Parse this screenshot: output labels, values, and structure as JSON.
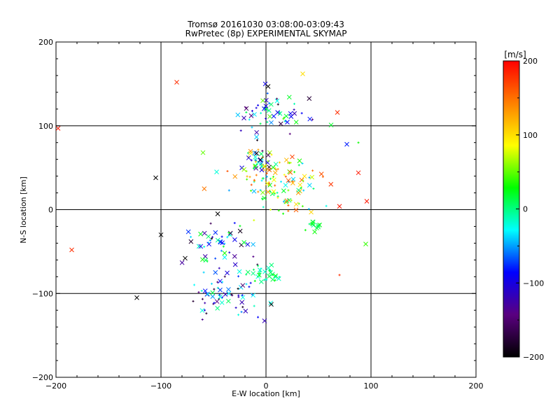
{
  "chart_data": {
    "type": "scatter",
    "title": "Tromsø 20161030 03:08:00-03:09:43",
    "subtitle": "RwPretec (8p) EXPERIMENTAL SKYMAP",
    "xlabel": "E-W location [km]",
    "ylabel": "N-S location [km]",
    "xlim": [
      -200,
      200
    ],
    "ylim": [
      -200,
      200
    ],
    "xticks": [
      "-200",
      "-100",
      "0",
      "100",
      "200"
    ],
    "yticks": [
      "-200",
      "-100",
      "0",
      "100",
      "200"
    ],
    "grid": true,
    "colorbar": {
      "label": "[m/s]",
      "range": [
        -200,
        200
      ],
      "ticks": [
        "200",
        "100",
        "0",
        "-100",
        "-200"
      ],
      "colors": [
        "#000000",
        "#5a0080",
        "#0000ff",
        "#00ffff",
        "#00ff00",
        "#ffff00",
        "#ff8000",
        "#ff0000"
      ]
    },
    "points": [
      {
        "x": -85,
        "y": 152,
        "v": 180,
        "m": "x"
      },
      {
        "x": 35,
        "y": 162,
        "v": 100,
        "m": "x"
      },
      {
        "x": 2,
        "y": 147,
        "v": -200,
        "m": "x"
      },
      {
        "x": 68,
        "y": 116,
        "v": 180,
        "m": "x"
      },
      {
        "x": -198,
        "y": 97,
        "v": 190,
        "m": "x"
      },
      {
        "x": -3,
        "y": 130,
        "v": 50,
        "m": "x"
      },
      {
        "x": 88,
        "y": 80,
        "v": 30,
        "m": "+"
      },
      {
        "x": 88,
        "y": 44,
        "v": 190,
        "m": "x"
      },
      {
        "x": 96,
        "y": 10,
        "v": 190,
        "m": "x"
      },
      {
        "x": 70,
        "y": 4,
        "v": 190,
        "m": "x"
      },
      {
        "x": 95,
        "y": -41,
        "v": 40,
        "m": "x"
      },
      {
        "x": -185,
        "y": -48,
        "v": 180,
        "m": "x"
      },
      {
        "x": -123,
        "y": -105,
        "v": -200,
        "m": "x"
      },
      {
        "x": -105,
        "y": 38,
        "v": -200,
        "m": "x"
      },
      {
        "x": -100,
        "y": -30,
        "v": -200,
        "m": "x"
      },
      {
        "x": -60,
        "y": 68,
        "v": 50,
        "m": "x"
      },
      {
        "x": -47,
        "y": 45,
        "v": -20,
        "m": "x"
      },
      {
        "x": -46,
        "y": -5,
        "v": -200,
        "m": "x"
      },
      {
        "x": -77,
        "y": -58,
        "v": -200,
        "m": "x"
      },
      {
        "x": 5,
        "y": -113,
        "v": -200,
        "m": "x"
      },
      {
        "x": 77,
        "y": 78,
        "v": -80,
        "m": "x"
      },
      {
        "x": 70,
        "y": -78,
        "v": 180,
        "m": "+"
      },
      {
        "x": 25,
        "y": 63,
        "v": 170,
        "m": "x"
      },
      {
        "x": 62,
        "y": 101,
        "v": 20,
        "m": "x"
      }
    ],
    "clusters": [
      {
        "cx": 10,
        "cy": 115,
        "sx": 18,
        "sy": 10,
        "n": 55,
        "vmin": -200,
        "vmax": 50
      },
      {
        "cx": -7,
        "cy": 58,
        "sx": 7,
        "sy": 10,
        "n": 45,
        "vmin": -200,
        "vmax": 150
      },
      {
        "cx": 15,
        "cy": 30,
        "sx": 22,
        "sy": 18,
        "n": 110,
        "vmin": -50,
        "vmax": 180
      },
      {
        "cx": 45,
        "cy": -20,
        "sx": 4,
        "sy": 5,
        "n": 12,
        "vmin": -10,
        "vmax": 30
      },
      {
        "cx": -40,
        "cy": -40,
        "sx": 15,
        "sy": 12,
        "n": 50,
        "vmin": -200,
        "vmax": 40
      },
      {
        "cx": -5,
        "cy": -75,
        "sx": 10,
        "sy": 7,
        "n": 35,
        "vmin": -30,
        "vmax": 30
      },
      {
        "cx": -40,
        "cy": -105,
        "sx": 18,
        "sy": 12,
        "n": 65,
        "vmin": -200,
        "vmax": 20
      }
    ]
  }
}
